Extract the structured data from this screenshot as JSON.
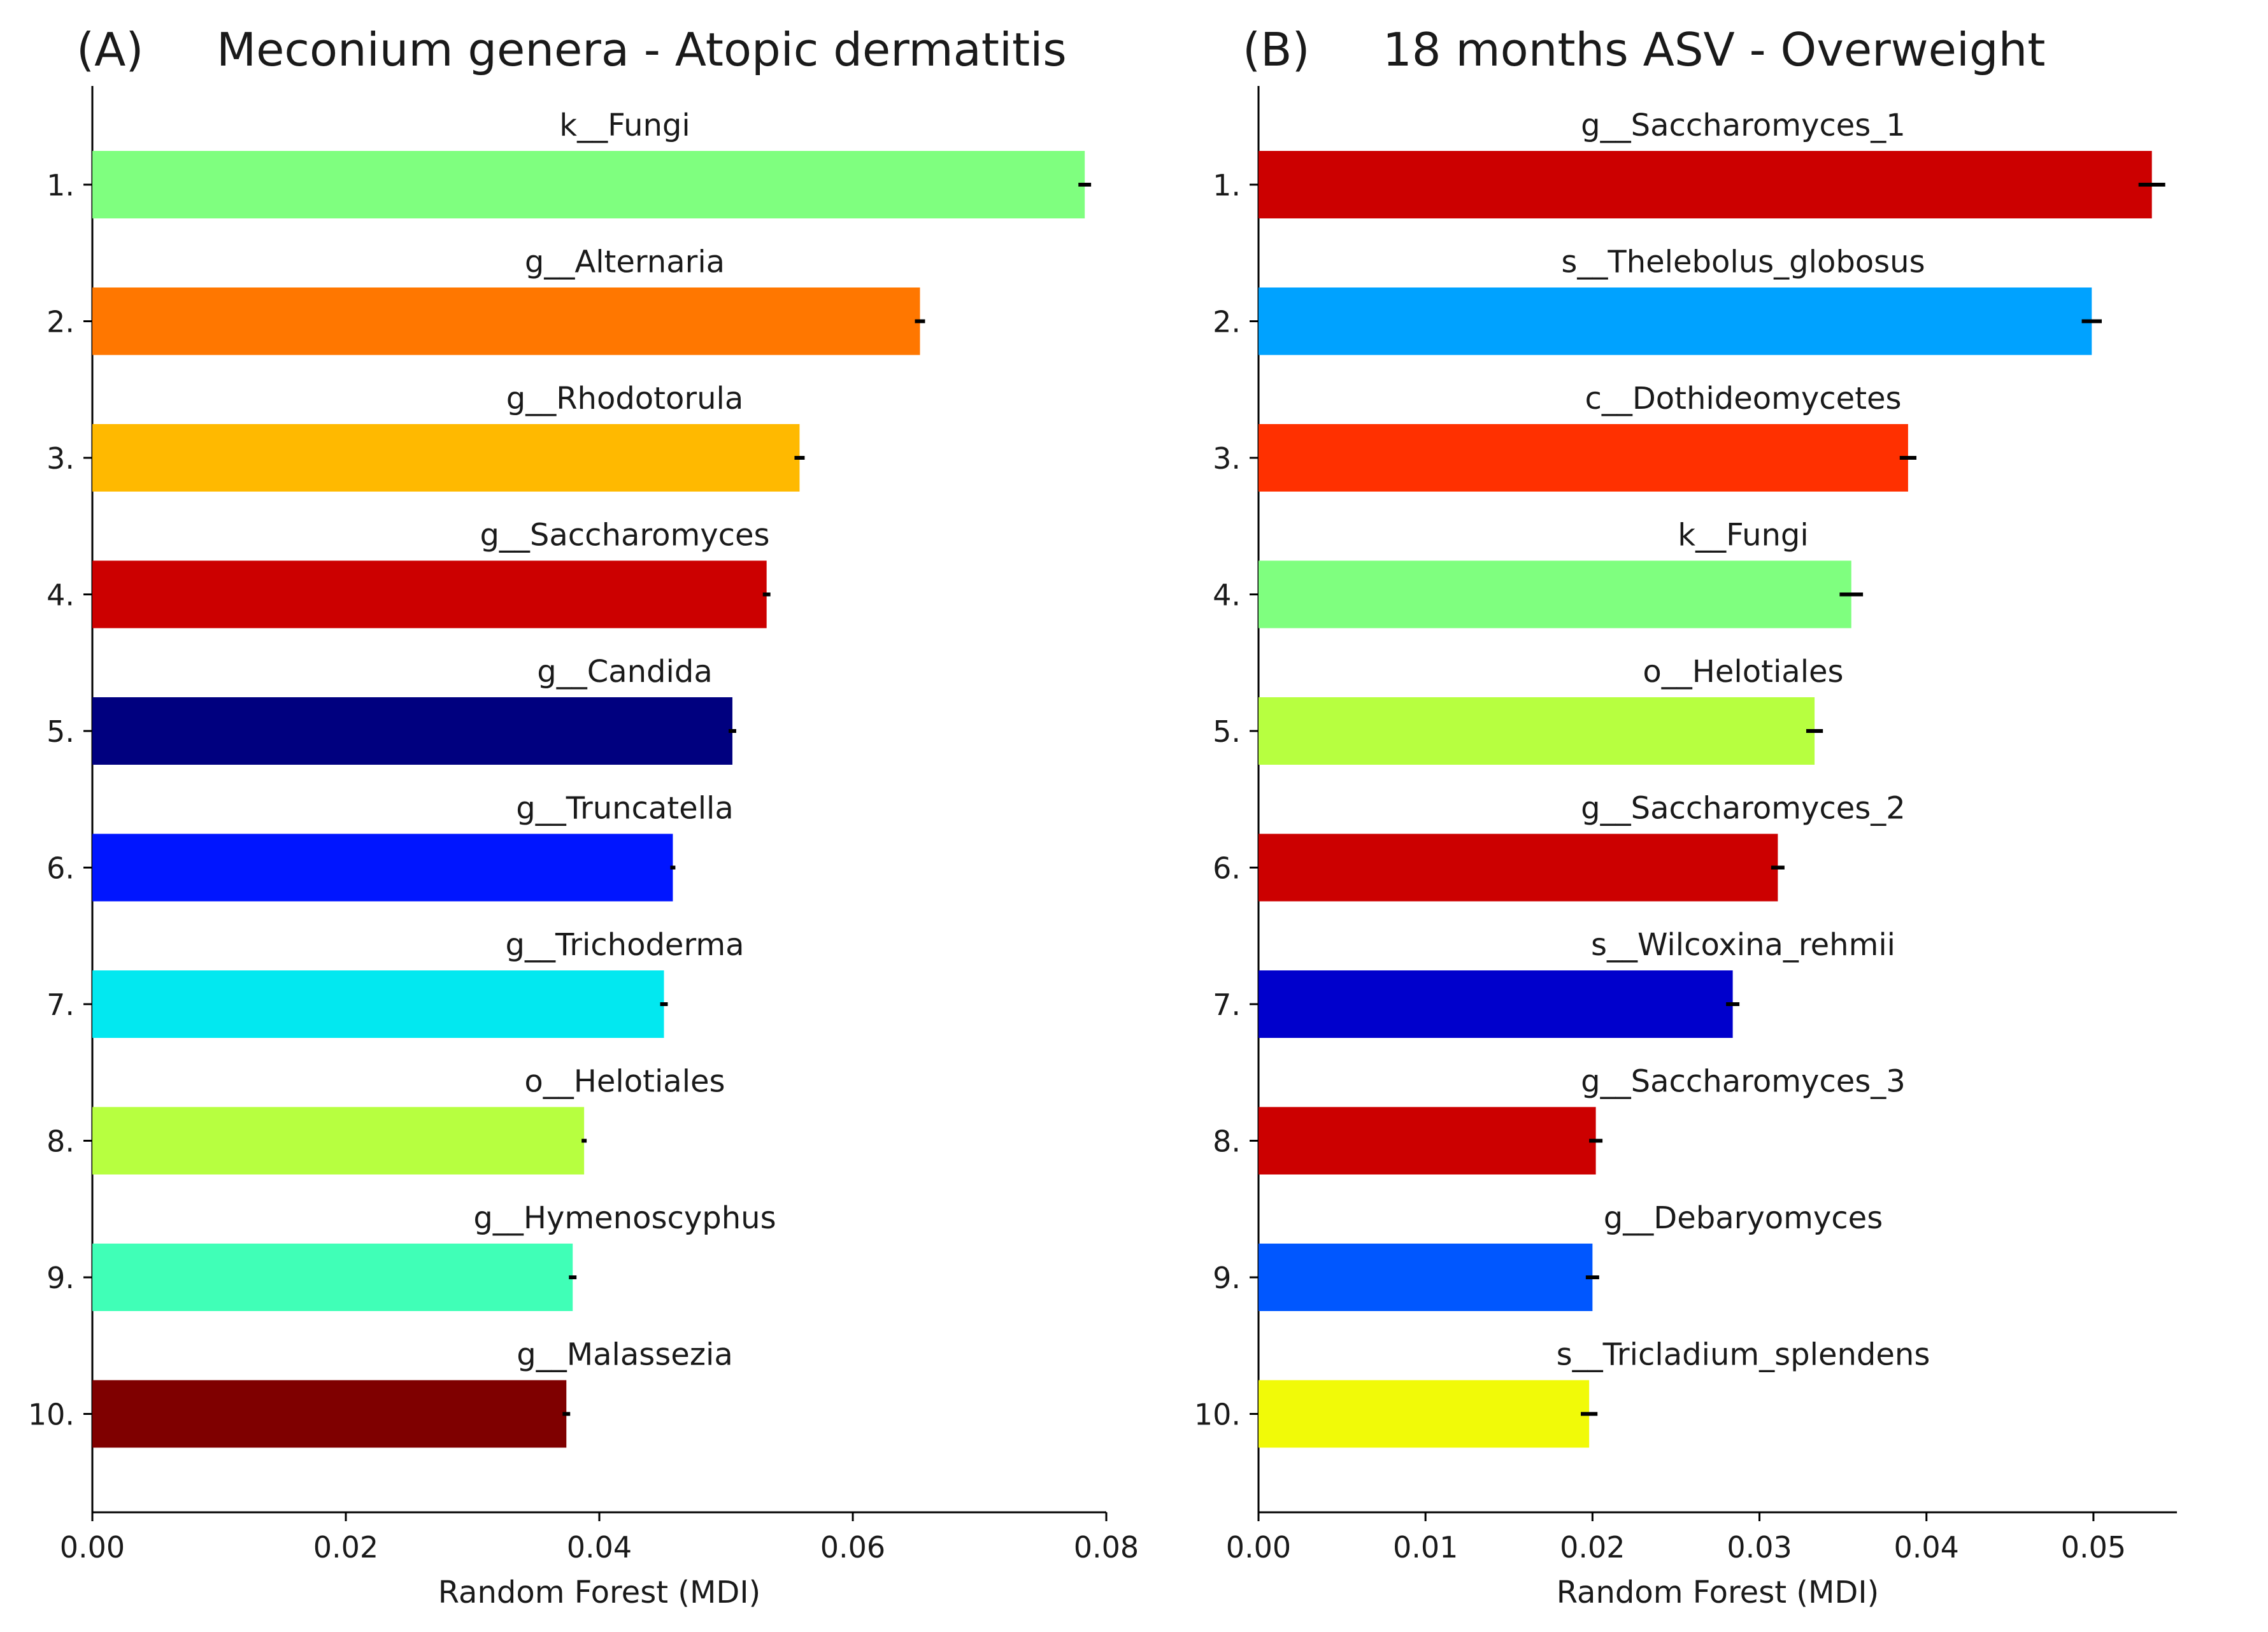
{
  "chart_data": [
    {
      "type": "bar",
      "orientation": "horizontal",
      "panel_label": "(A)",
      "title": "Meconium genera - Atopic dermatitis",
      "xlabel": "Random Forest (MDI)",
      "ylabel": "",
      "xlim": [
        0,
        0.08
      ],
      "xticks": [
        "0.00",
        "0.02",
        "0.04",
        "0.06",
        "0.08"
      ],
      "rank_labels": [
        "1.",
        "2.",
        "3.",
        "4.",
        "5.",
        "6.",
        "7.",
        "8.",
        "9.",
        "10."
      ],
      "categories": [
        "k__Fungi",
        "g__Alternaria",
        "g__Rhodotorula",
        "g__Saccharomyces",
        "g__Candida",
        "g__Truncatella",
        "g__Trichoderma",
        "o__Helotiales",
        "g__Hymenoscyphus",
        "g__Malassezia"
      ],
      "values": [
        0.0783,
        0.0653,
        0.0558,
        0.0532,
        0.0505,
        0.0458,
        0.0451,
        0.0388,
        0.0379,
        0.0374
      ],
      "errors": [
        0.0005,
        0.0004,
        0.0004,
        0.0003,
        0.0003,
        0.0002,
        0.0003,
        0.0002,
        0.0003,
        0.0003
      ],
      "colors": [
        "#7fff7f",
        "#ff7700",
        "#ffb900",
        "#cc0000",
        "#00007f",
        "#0015ff",
        "#02e8f0",
        "#b7ff40",
        "#40ffb7",
        "#7f0000"
      ],
      "grid": false,
      "legend": "none"
    },
    {
      "type": "bar",
      "orientation": "horizontal",
      "panel_label": "(B)",
      "title": "18 months ASV - Overweight",
      "xlabel": "Random Forest (MDI)",
      "ylabel": "",
      "xlim": [
        0,
        0.055
      ],
      "xticks": [
        "0.00",
        "0.01",
        "0.02",
        "0.03",
        "0.04",
        "0.05"
      ],
      "rank_labels": [
        "1.",
        "2.",
        "3.",
        "4.",
        "5.",
        "6.",
        "7.",
        "8.",
        "9.",
        "10."
      ],
      "categories": [
        "g__Saccharomyces_1",
        "s__Thelebolus_globosus",
        "c__Dothideomycetes",
        "k__Fungi",
        "o__Helotiales",
        "g__Saccharomyces_2",
        "s__Wilcoxina_rehmii",
        "g__Saccharomyces_3",
        "g__Debaryomyces",
        "s__Tricladium_splendens"
      ],
      "values": [
        0.0535,
        0.0499,
        0.0389,
        0.0355,
        0.0333,
        0.0311,
        0.0284,
        0.0202,
        0.02,
        0.0198
      ],
      "errors": [
        0.0008,
        0.0006,
        0.0005,
        0.0007,
        0.0005,
        0.0004,
        0.0004,
        0.0004,
        0.0004,
        0.0005
      ],
      "colors": [
        "#cc0000",
        "#00a2ff",
        "#ff3000",
        "#7fff7f",
        "#b7ff40",
        "#cc0000",
        "#0000cc",
        "#cc0000",
        "#0057ff",
        "#f1fa08"
      ],
      "grid": false,
      "legend": "none"
    }
  ]
}
